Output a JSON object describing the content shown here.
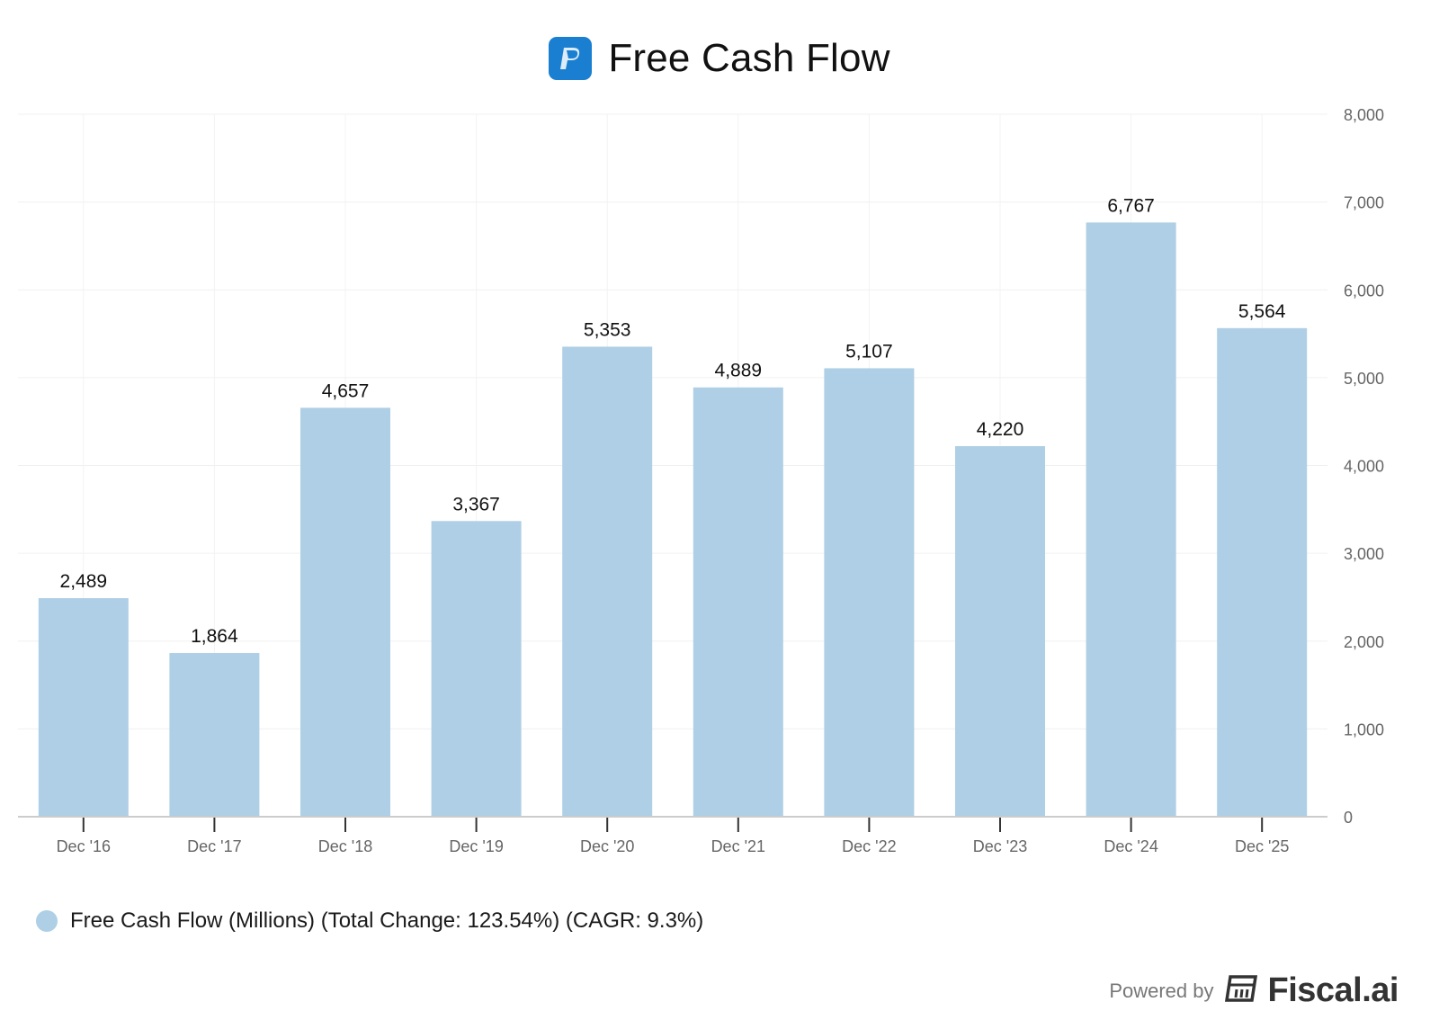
{
  "header": {
    "title": "Free Cash Flow",
    "logo_icon": "paypal-logo-icon"
  },
  "chart_data": {
    "type": "bar",
    "categories": [
      "Dec '16",
      "Dec '17",
      "Dec '18",
      "Dec '19",
      "Dec '20",
      "Dec '21",
      "Dec '22",
      "Dec '23",
      "Dec '24",
      "Dec '25"
    ],
    "series": [
      {
        "name": "Free Cash Flow (Millions) (Total Change: 123.54%) (CAGR: 9.3%)",
        "values": [
          2489,
          1864,
          4657,
          3367,
          5353,
          4889,
          5107,
          4220,
          6767,
          5564
        ],
        "color": "#aecfe5"
      }
    ],
    "data_labels": [
      "2,489",
      "1,864",
      "4,657",
      "3,367",
      "5,353",
      "4,889",
      "5,107",
      "4,220",
      "6,767",
      "5,564"
    ],
    "y_ticks": [
      0,
      1000,
      2000,
      3000,
      4000,
      5000,
      6000,
      7000,
      8000
    ],
    "y_tick_labels": [
      "0",
      "1,000",
      "2,000",
      "3,000",
      "4,000",
      "5,000",
      "6,000",
      "7,000",
      "8,000"
    ],
    "ylim": [
      0,
      8000
    ],
    "y_axis_side": "right",
    "grid": true,
    "legend_position": "bottom-left"
  },
  "footer": {
    "powered_label": "Powered by",
    "brand": "Fiscal.ai",
    "brand_icon": "fiscal-logo-icon"
  }
}
